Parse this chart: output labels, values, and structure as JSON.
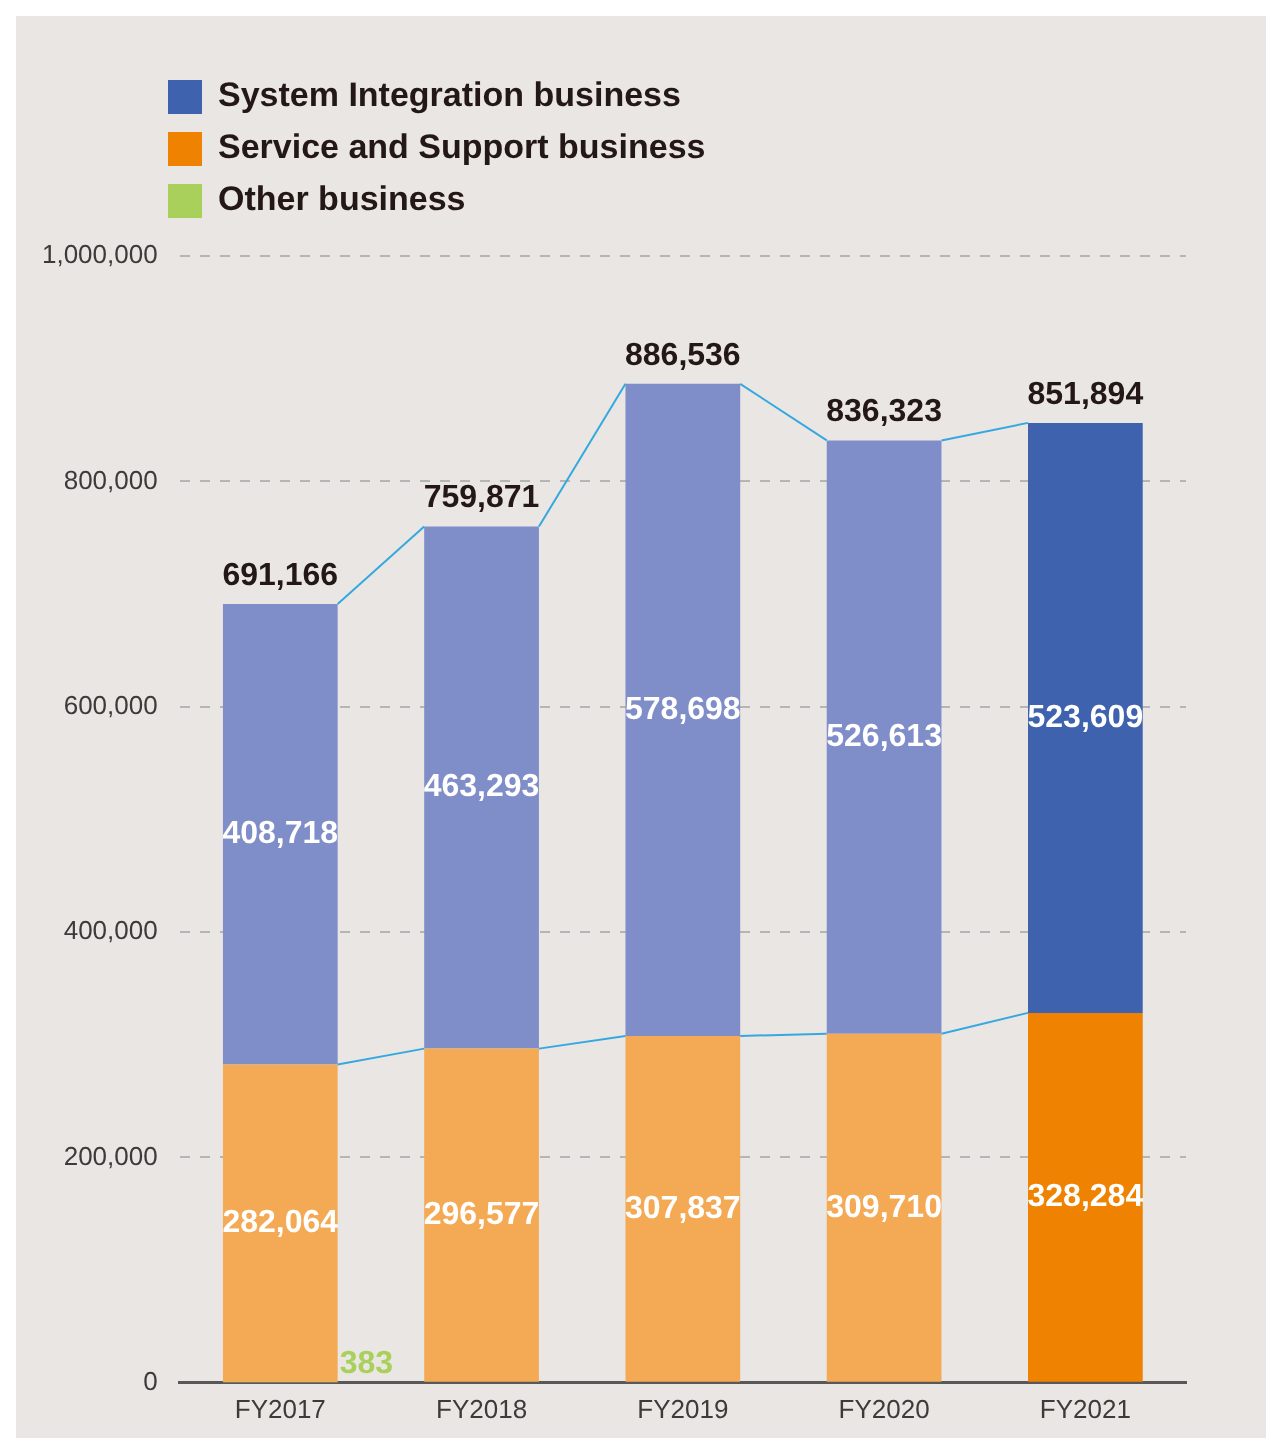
{
  "chart_data": {
    "type": "bar",
    "stacked": true,
    "categories": [
      "FY2017",
      "FY2018",
      "FY2019",
      "FY2020",
      "FY2021"
    ],
    "series": [
      {
        "name": "Other business",
        "color": "#a8d05a",
        "values": [
          383,
          null,
          null,
          null,
          null
        ],
        "value_labels": [
          "383",
          null,
          null,
          null,
          null
        ]
      },
      {
        "name": "Service and Support business",
        "color": "#ef8200",
        "colors": [
          "#f4aa55",
          "#f4aa55",
          "#f4aa55",
          "#f4aa55",
          "#ef8200"
        ],
        "values": [
          282064,
          296577,
          307837,
          309710,
          328284
        ],
        "value_labels": [
          "282,064",
          "296,577",
          "307,837",
          "309,710",
          "328,284"
        ]
      },
      {
        "name": "System Integration business",
        "color": "#3e62ae",
        "colors": [
          "#7f8dc8",
          "#7f8dc8",
          "#7f8dc8",
          "#7f8dc8",
          "#3e62ae"
        ],
        "values": [
          408718,
          463293,
          578698,
          526613,
          523609
        ],
        "value_labels": [
          "408,718",
          "463,293",
          "578,698",
          "526,613",
          "523,609"
        ]
      }
    ],
    "totals": [
      "691,166",
      "759,871",
      "886,536",
      "836,323",
      "851,894"
    ],
    "ylim": [
      0,
      1000000
    ],
    "yticks": [
      {
        "value": 0,
        "label": "0"
      },
      {
        "value": 200000,
        "label": "200,000"
      },
      {
        "value": 400000,
        "label": "400,000"
      },
      {
        "value": 600000,
        "label": "600,000"
      },
      {
        "value": 800000,
        "label": "800,000"
      },
      {
        "value": 1000000,
        "label": "1,000,000"
      }
    ],
    "grid": "y",
    "legend": "top left"
  }
}
